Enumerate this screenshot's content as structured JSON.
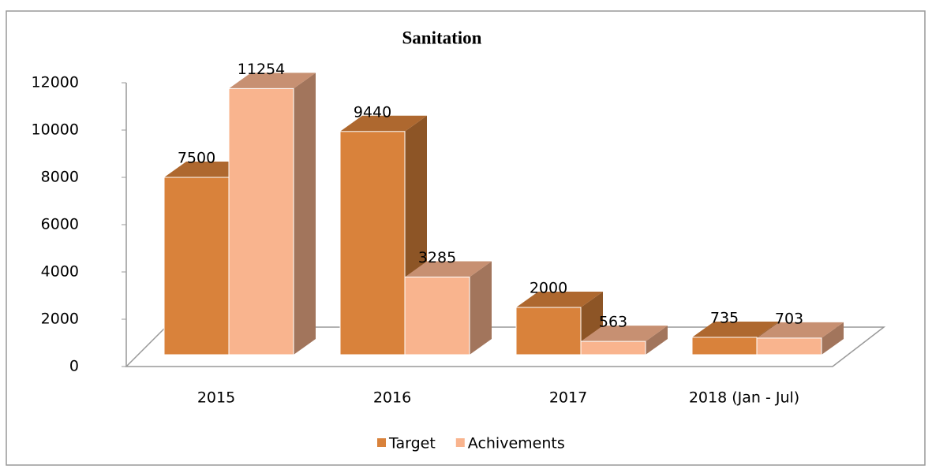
{
  "chart_data": {
    "type": "bar3d",
    "title": "Sanitation",
    "categories": [
      "2015",
      "2016",
      "2017",
      "2018 (Jan - Jul)"
    ],
    "series": [
      {
        "name": "Target",
        "color": "#d9823b",
        "values": [
          7500,
          9440,
          2000,
          735
        ]
      },
      {
        "name": "Achivements",
        "color": "#f9b48e",
        "values": [
          11254,
          3285,
          563,
          703
        ]
      }
    ],
    "ylim": [
      0,
      12000
    ],
    "yticks": [
      0,
      2000,
      4000,
      6000,
      8000,
      10000,
      12000
    ],
    "legend": "bottom",
    "grid": false
  }
}
